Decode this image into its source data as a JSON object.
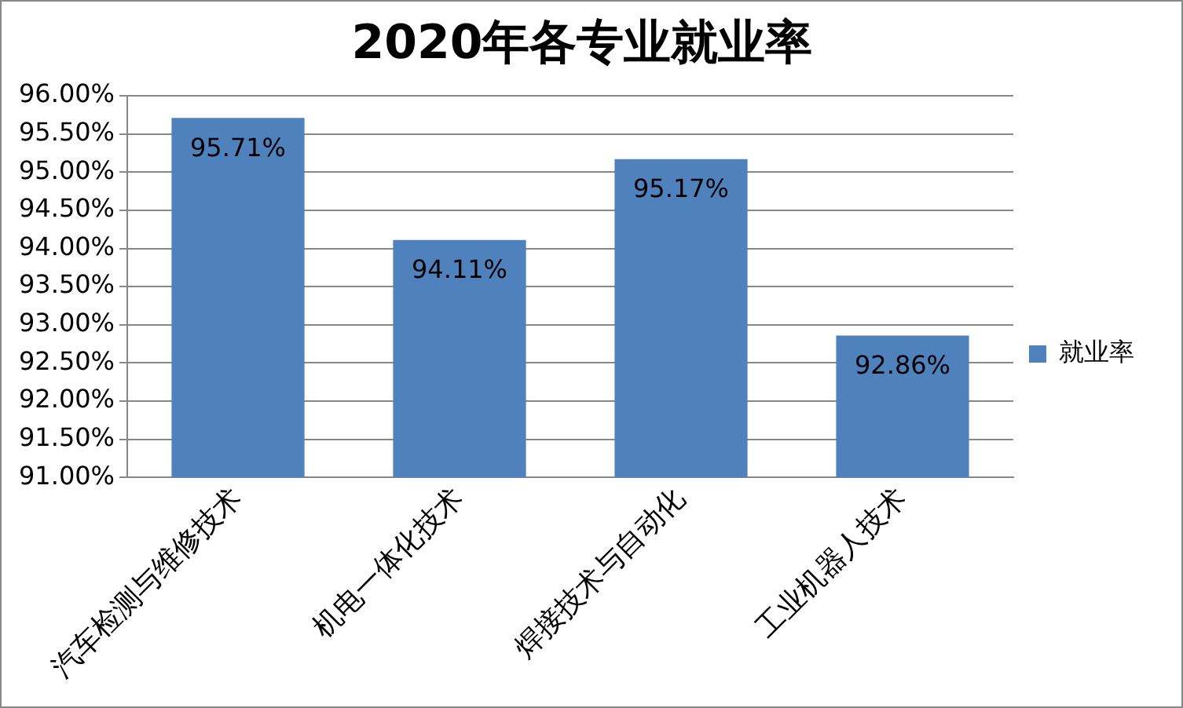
{
  "chart_data": {
    "type": "bar",
    "title": "2020年各专业就业率",
    "categories": [
      "汽车检测与维修技术",
      "机电一体化技术",
      "焊接技术与自动化",
      "工业机器人技术"
    ],
    "series": [
      {
        "name": "就业率",
        "color": "#4f81bd",
        "values": [
          95.71,
          94.11,
          95.17,
          92.86
        ],
        "value_labels": [
          "95.71%",
          "94.11%",
          "95.17%",
          "92.86%"
        ]
      }
    ],
    "ylim": [
      91,
      96
    ],
    "yticks": [
      {
        "value": 91,
        "label": "91.00%"
      },
      {
        "value": 91.5,
        "label": "91.50%"
      },
      {
        "value": 92,
        "label": "92.00%"
      },
      {
        "value": 92.5,
        "label": "92.50%"
      },
      {
        "value": 93,
        "label": "93.00%"
      },
      {
        "value": 93.5,
        "label": "93.50%"
      },
      {
        "value": 94,
        "label": "94.00%"
      },
      {
        "value": 94.5,
        "label": "94.50%"
      },
      {
        "value": 95,
        "label": "95.00%"
      },
      {
        "value": 95.5,
        "label": "95.50%"
      },
      {
        "value": 96,
        "label": "96.00%"
      }
    ],
    "grid": "y",
    "legend": "right"
  }
}
